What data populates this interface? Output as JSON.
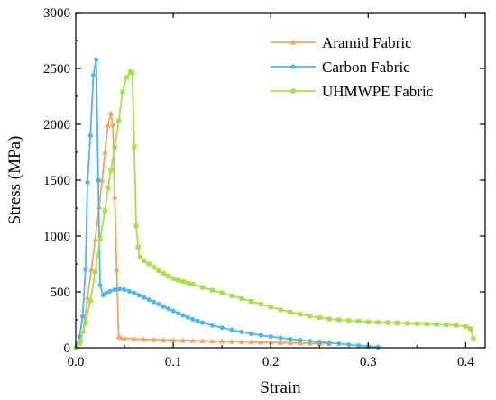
{
  "chart_data": {
    "type": "line",
    "title": "",
    "xlabel": "Strain",
    "ylabel": "Stress (MPa)",
    "xlim": [
      0.0,
      0.42
    ],
    "ylim": [
      0,
      3000
    ],
    "xticks": [
      "0.0",
      "0.1",
      "0.2",
      "0.3",
      "0.4"
    ],
    "yticks": [
      "0",
      "500",
      "1000",
      "1500",
      "2000",
      "2500",
      "3000"
    ],
    "grid": false,
    "legend_position": "top-right",
    "series": [
      {
        "name": "Aramid Fabric",
        "color": "#f4a460",
        "marker": "triangle",
        "points": [
          [
            0.0,
            0
          ],
          [
            0.004,
            40
          ],
          [
            0.008,
            150
          ],
          [
            0.012,
            450
          ],
          [
            0.016,
            700
          ],
          [
            0.02,
            970
          ],
          [
            0.024,
            1260
          ],
          [
            0.027,
            1500
          ],
          [
            0.03,
            1750
          ],
          [
            0.033,
            1990
          ],
          [
            0.036,
            2100
          ],
          [
            0.038,
            2000
          ],
          [
            0.04,
            1350
          ],
          [
            0.042,
            700
          ],
          [
            0.044,
            100
          ],
          [
            0.046,
            90
          ],
          [
            0.05,
            85
          ],
          [
            0.06,
            80
          ],
          [
            0.07,
            75
          ],
          [
            0.08,
            72
          ],
          [
            0.09,
            70
          ],
          [
            0.1,
            68
          ],
          [
            0.11,
            66
          ],
          [
            0.12,
            64
          ],
          [
            0.13,
            62
          ],
          [
            0.14,
            60
          ],
          [
            0.15,
            58
          ],
          [
            0.16,
            56
          ],
          [
            0.17,
            54
          ],
          [
            0.18,
            52
          ],
          [
            0.19,
            50
          ],
          [
            0.2,
            48
          ],
          [
            0.21,
            46
          ],
          [
            0.22,
            44
          ],
          [
            0.23,
            42
          ],
          [
            0.24,
            40
          ],
          [
            0.25,
            38
          ],
          [
            0.26,
            36
          ]
        ]
      },
      {
        "name": "Carbon Fabric",
        "color": "#4cb8e8",
        "marker": "circle",
        "points": [
          [
            0.0,
            0
          ],
          [
            0.004,
            100
          ],
          [
            0.007,
            280
          ],
          [
            0.01,
            700
          ],
          [
            0.012,
            1480
          ],
          [
            0.015,
            1900
          ],
          [
            0.018,
            2440
          ],
          [
            0.021,
            2580
          ],
          [
            0.023,
            1500
          ],
          [
            0.025,
            560
          ],
          [
            0.028,
            470
          ],
          [
            0.031,
            490
          ],
          [
            0.035,
            505
          ],
          [
            0.04,
            520
          ],
          [
            0.045,
            525
          ],
          [
            0.05,
            520
          ],
          [
            0.055,
            505
          ],
          [
            0.06,
            490
          ],
          [
            0.065,
            470
          ],
          [
            0.07,
            450
          ],
          [
            0.075,
            430
          ],
          [
            0.08,
            410
          ],
          [
            0.085,
            390
          ],
          [
            0.09,
            370
          ],
          [
            0.095,
            350
          ],
          [
            0.1,
            330
          ],
          [
            0.105,
            310
          ],
          [
            0.11,
            290
          ],
          [
            0.115,
            272
          ],
          [
            0.12,
            255
          ],
          [
            0.125,
            240
          ],
          [
            0.13,
            225
          ],
          [
            0.14,
            200
          ],
          [
            0.15,
            180
          ],
          [
            0.16,
            160
          ],
          [
            0.17,
            142
          ],
          [
            0.18,
            126
          ],
          [
            0.19,
            112
          ],
          [
            0.2,
            100
          ],
          [
            0.21,
            88
          ],
          [
            0.22,
            78
          ],
          [
            0.23,
            68
          ],
          [
            0.24,
            60
          ],
          [
            0.25,
            52
          ],
          [
            0.26,
            44
          ],
          [
            0.27,
            36
          ],
          [
            0.28,
            28
          ],
          [
            0.29,
            20
          ],
          [
            0.3,
            12
          ],
          [
            0.31,
            5
          ]
        ]
      },
      {
        "name": "UHMWPE Fabric",
        "color": "#a6e04a",
        "marker": "square",
        "points": [
          [
            0.0,
            0
          ],
          [
            0.005,
            60
          ],
          [
            0.01,
            220
          ],
          [
            0.015,
            420
          ],
          [
            0.02,
            680
          ],
          [
            0.025,
            970
          ],
          [
            0.03,
            1230
          ],
          [
            0.033,
            1430
          ],
          [
            0.036,
            1590
          ],
          [
            0.04,
            1790
          ],
          [
            0.044,
            2030
          ],
          [
            0.048,
            2290
          ],
          [
            0.052,
            2420
          ],
          [
            0.056,
            2470
          ],
          [
            0.058,
            2460
          ],
          [
            0.06,
            1800
          ],
          [
            0.062,
            1090
          ],
          [
            0.064,
            900
          ],
          [
            0.066,
            810
          ],
          [
            0.07,
            780
          ],
          [
            0.075,
            750
          ],
          [
            0.08,
            720
          ],
          [
            0.085,
            690
          ],
          [
            0.09,
            665
          ],
          [
            0.095,
            640
          ],
          [
            0.1,
            620
          ],
          [
            0.105,
            605
          ],
          [
            0.11,
            592
          ],
          [
            0.115,
            580
          ],
          [
            0.12,
            568
          ],
          [
            0.13,
            540
          ],
          [
            0.14,
            515
          ],
          [
            0.15,
            490
          ],
          [
            0.16,
            465
          ],
          [
            0.17,
            440
          ],
          [
            0.18,
            415
          ],
          [
            0.19,
            390
          ],
          [
            0.2,
            365
          ],
          [
            0.21,
            340
          ],
          [
            0.22,
            320
          ],
          [
            0.23,
            300
          ],
          [
            0.24,
            285
          ],
          [
            0.25,
            270
          ],
          [
            0.26,
            258
          ],
          [
            0.27,
            250
          ],
          [
            0.28,
            243
          ],
          [
            0.29,
            237
          ],
          [
            0.3,
            232
          ],
          [
            0.31,
            228
          ],
          [
            0.32,
            225
          ],
          [
            0.33,
            222
          ],
          [
            0.34,
            219
          ],
          [
            0.35,
            216
          ],
          [
            0.36,
            213
          ],
          [
            0.37,
            210
          ],
          [
            0.38,
            206
          ],
          [
            0.39,
            200
          ],
          [
            0.4,
            190
          ],
          [
            0.405,
            170
          ],
          [
            0.408,
            80
          ]
        ]
      }
    ]
  }
}
